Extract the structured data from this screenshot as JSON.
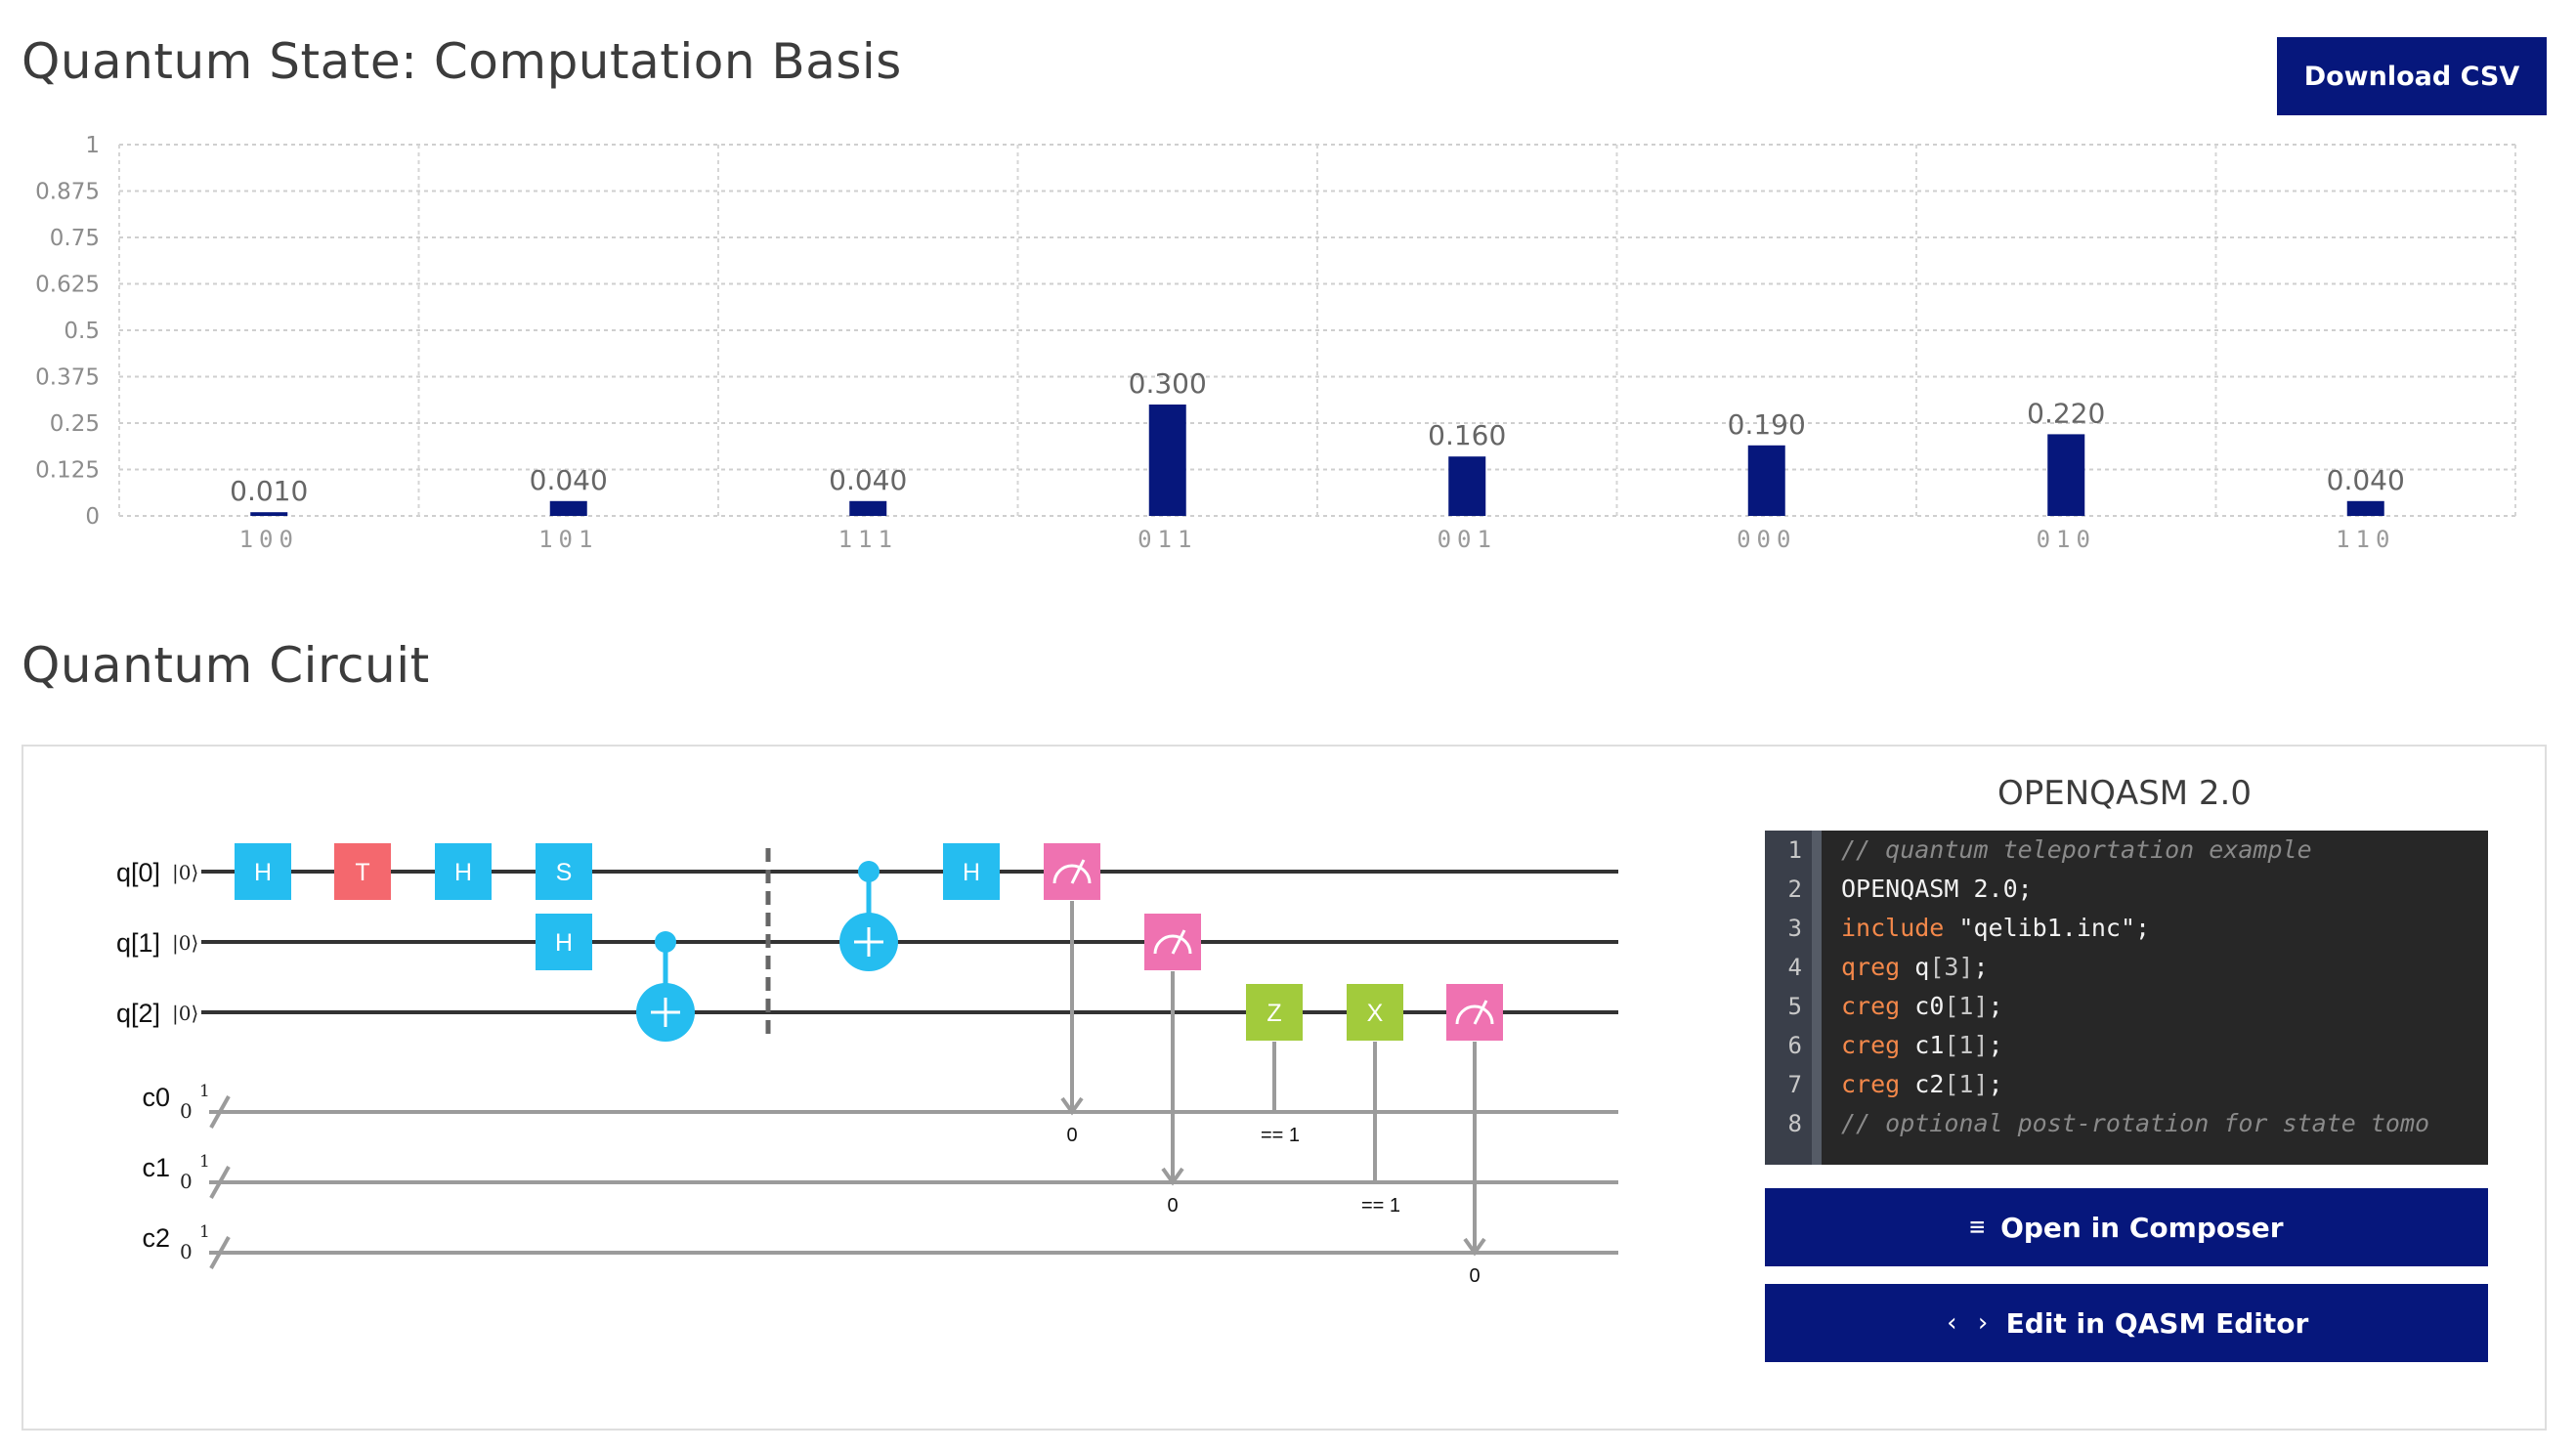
{
  "header": {
    "title": "Quantum State: Computation Basis",
    "download_label": "Download CSV"
  },
  "chart_data": {
    "type": "bar",
    "categories": [
      "100",
      "101",
      "111",
      "011",
      "001",
      "000",
      "010",
      "110"
    ],
    "values": [
      0.01,
      0.04,
      0.04,
      0.3,
      0.16,
      0.19,
      0.22,
      0.04
    ],
    "value_labels": [
      "0.010",
      "0.040",
      "0.040",
      "0.300",
      "0.160",
      "0.190",
      "0.220",
      "0.040"
    ],
    "y_ticks": [
      "0",
      "0.125",
      "0.25",
      "0.375",
      "0.5",
      "0.625",
      "0.75",
      "0.875",
      "1"
    ],
    "ylim": [
      0,
      1
    ],
    "grid": true,
    "bar_color": "#06177c"
  },
  "circuit_section": {
    "title": "Quantum Circuit",
    "qubits": [
      {
        "label": "q[0]",
        "ket": "|0⟩"
      },
      {
        "label": "q[1]",
        "ket": "|0⟩"
      },
      {
        "label": "q[2]",
        "ket": "|0⟩"
      }
    ],
    "cbits": [
      {
        "label": "c0",
        "init": "0",
        "width": "1"
      },
      {
        "label": "c1",
        "init": "0",
        "width": "1"
      },
      {
        "label": "c2",
        "init": "0",
        "width": "1"
      }
    ],
    "gate_colors": {
      "H": "#25bdf0",
      "S": "#25bdf0",
      "T": "#f4686e",
      "CNOT": "#25bdf0",
      "Z": "#a2cb3c",
      "X": "#a2cb3c",
      "M": "#ef72b1"
    },
    "measure_labels": [
      "0",
      "0",
      "0"
    ],
    "condition_labels": [
      "== 1",
      "== 1"
    ]
  },
  "qasm": {
    "title": "OPENQASM 2.0",
    "line_numbers": [
      "1",
      "2",
      "3",
      "4",
      "5",
      "6",
      "7",
      "8"
    ],
    "lines": [
      {
        "type": "comment",
        "text": "// quantum teleportation example"
      },
      {
        "type": "plain",
        "text": "OPENQASM 2.0;"
      },
      {
        "type": "kw",
        "kw": "include",
        "rest": " \"qelib1.inc\";"
      },
      {
        "type": "kw",
        "kw": "qreg",
        "rest": " q",
        "br": "[3]",
        "end": ";"
      },
      {
        "type": "kw",
        "kw": "creg",
        "rest": " c0",
        "br": "[1]",
        "end": ";"
      },
      {
        "type": "kw",
        "kw": "creg",
        "rest": " c1",
        "br": "[1]",
        "end": ";"
      },
      {
        "type": "kw",
        "kw": "creg",
        "rest": " c2",
        "br": "[1]",
        "end": ";"
      },
      {
        "type": "comment",
        "text": "// optional post-rotation for state tomo"
      }
    ],
    "composer_label": "Open in Composer",
    "composer_icon": "≡",
    "editor_label": "Edit in QASM Editor",
    "editor_icon": "‹ ›"
  }
}
